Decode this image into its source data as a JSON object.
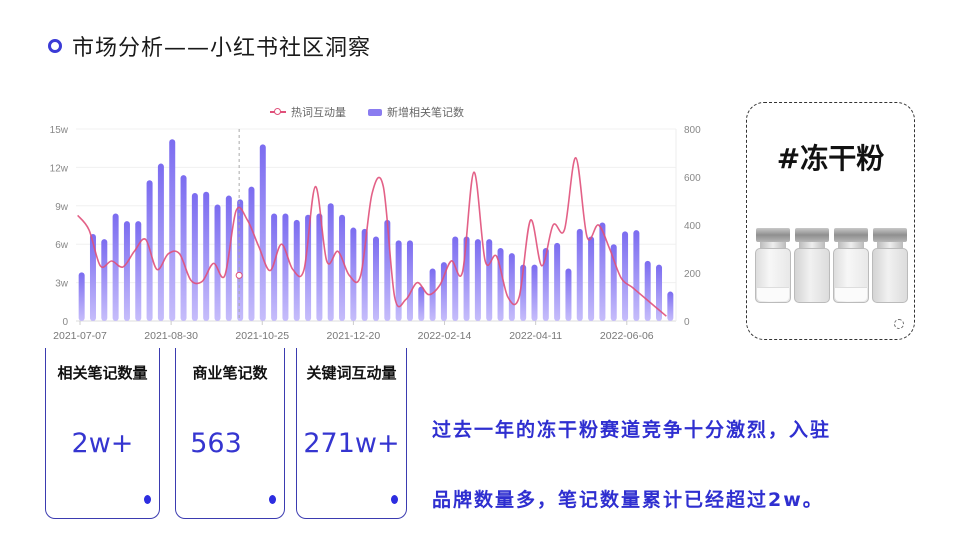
{
  "header": {
    "title": "市场分析——小红书社区洞察",
    "accent_color": "#3b3bd6"
  },
  "legend": {
    "line_label": "热词互动量",
    "bar_label": "新增相关笔记数"
  },
  "tag_box": {
    "title": "#冻干粉",
    "image_icon": "vials-image"
  },
  "cards": [
    {
      "label": "相关笔记数量",
      "value": "2w+"
    },
    {
      "label": "商业笔记数",
      "value": "563"
    },
    {
      "label": "关键词互动量",
      "value": "271w+"
    }
  ],
  "summary": {
    "line1": "过去一年的冻干粉赛道竞争十分激烈，入驻",
    "line2": "品牌数量多，笔记数量累计已经超过2w。"
  },
  "colors": {
    "bar": "#7b6cf0",
    "bar_light": "#c6bdfb",
    "line": "#e0507a",
    "value_text": "#3535d0"
  },
  "chart_data": {
    "type": "bar+line",
    "title": "",
    "xlabel": "",
    "ylabel_left": "新增相关笔记数",
    "ylabel_right": "热词互动量",
    "x_tick_labels": [
      "2021-07-07",
      "2021-08-30",
      "2021-10-25",
      "2021-12-20",
      "2022-02-14",
      "2022-04-11",
      "2022-06-06"
    ],
    "y_left_ticks": [
      "0",
      "3w",
      "6w",
      "9w",
      "12w",
      "15w"
    ],
    "y_left_range": [
      0,
      150000
    ],
    "y_right_ticks": [
      "0",
      "200",
      "400",
      "600",
      "800"
    ],
    "y_right_range": [
      0,
      800
    ],
    "legend_position": "top",
    "grid": true,
    "series": [
      {
        "name": "新增相关笔记数",
        "type": "bar",
        "axis": "left",
        "unit": "w",
        "values": [
          3.8,
          6.8,
          6.4,
          8.4,
          7.8,
          7.8,
          11.0,
          12.3,
          14.2,
          11.4,
          10.0,
          10.1,
          9.1,
          9.8,
          9.5,
          10.5,
          13.8,
          8.4,
          8.4,
          7.9,
          8.3,
          8.4,
          9.2,
          8.3,
          7.3,
          7.2,
          6.6,
          7.9,
          6.3,
          6.3,
          2.7,
          4.1,
          4.6,
          6.6,
          6.6,
          6.4,
          6.4,
          5.7,
          5.3,
          4.4,
          4.4,
          5.7,
          6.1,
          4.1,
          7.2,
          6.6,
          7.7,
          6.0,
          7.0,
          7.1,
          4.7,
          4.4,
          2.3
        ]
      },
      {
        "name": "热词互动量",
        "type": "line",
        "axis": "right",
        "smooth": true,
        "values": [
          440,
          380,
          230,
          250,
          225,
          290,
          340,
          215,
          280,
          280,
          170,
          165,
          240,
          190,
          460,
          420,
          310,
          210,
          320,
          215,
          215,
          560,
          250,
          290,
          190,
          190,
          530,
          560,
          100,
          90,
          160,
          110,
          150,
          250,
          205,
          620,
          250,
          270,
          100,
          100,
          420,
          230,
          400,
          380,
          680,
          350,
          400,
          300,
          180,
          140,
          100,
          60,
          20
        ]
      }
    ],
    "highlight_index": 14
  }
}
